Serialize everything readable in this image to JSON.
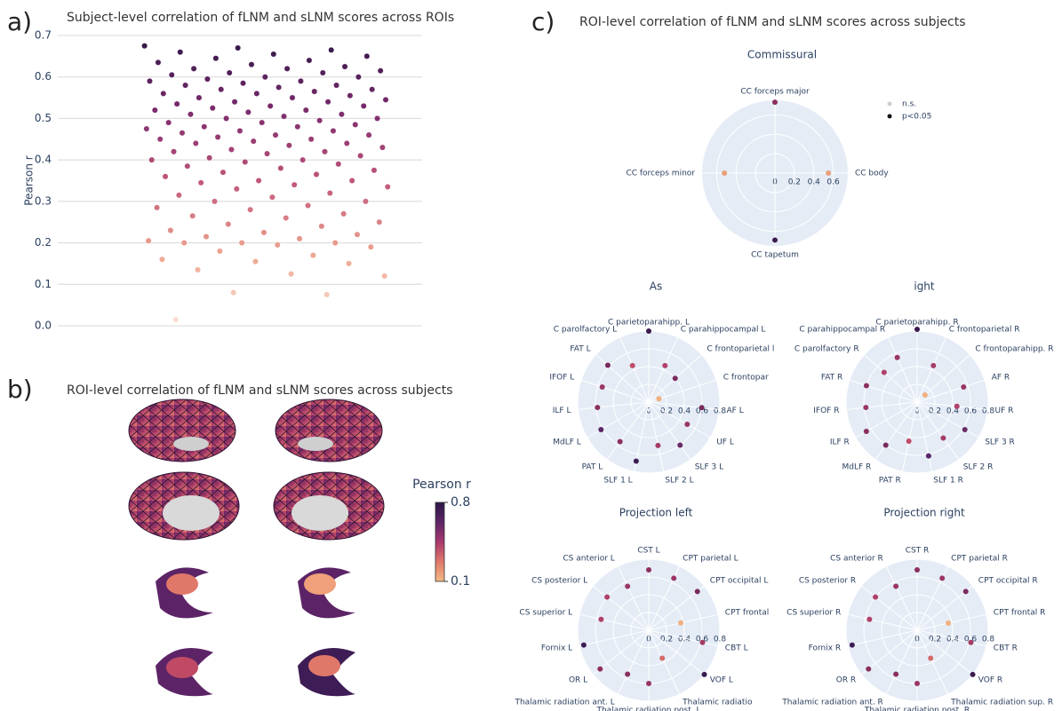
{
  "panels": [
    {
      "label": "a)"
    },
    {
      "label": "b)",
      "title": "ROI-level correlation of fLNM and sLNM scores across subjects"
    },
    {
      "label": "c)",
      "title": "ROI-level correlation of fLNM and sLNM scores across subjects"
    }
  ],
  "chart_data": [
    {
      "type": "strip",
      "title": "Subject-level correlation of fLNM and sLNM scores across ROIs",
      "y_label": "Pearson r",
      "ylim": [
        0,
        0.7
      ],
      "yticks": [
        {
          "value": 0,
          "label": "0.0"
        },
        0.1,
        0.2,
        0.3,
        0.4,
        0.5,
        0.6,
        0.7
      ],
      "grid": true,
      "colorscale": [
        "#fbe3d6",
        "#eea58f",
        "#c0567a",
        "#7a2a6c",
        "#2c1746"
      ],
      "values": [
        0.015,
        0.075,
        0.08,
        0.12,
        0.125,
        0.135,
        0.15,
        0.155,
        0.16,
        0.17,
        0.18,
        0.19,
        0.195,
        0.2,
        0.2,
        0.2,
        0.205,
        0.21,
        0.215,
        0.22,
        0.225,
        0.23,
        0.24,
        0.245,
        0.25,
        0.26,
        0.265,
        0.27,
        0.28,
        0.285,
        0.29,
        0.3,
        0.3,
        0.31,
        0.315,
        0.32,
        0.33,
        0.335,
        0.34,
        0.345,
        0.35,
        0.35,
        0.36,
        0.365,
        0.37,
        0.375,
        0.38,
        0.385,
        0.39,
        0.395,
        0.4,
        0.4,
        0.405,
        0.41,
        0.415,
        0.42,
        0.42,
        0.425,
        0.43,
        0.435,
        0.44,
        0.44,
        0.445,
        0.45,
        0.45,
        0.455,
        0.46,
        0.46,
        0.465,
        0.47,
        0.47,
        0.475,
        0.48,
        0.48,
        0.485,
        0.49,
        0.49,
        0.495,
        0.5,
        0.5,
        0.505,
        0.51,
        0.51,
        0.515,
        0.52,
        0.52,
        0.525,
        0.53,
        0.53,
        0.535,
        0.54,
        0.54,
        0.545,
        0.55,
        0.55,
        0.555,
        0.56,
        0.56,
        0.565,
        0.57,
        0.57,
        0.575,
        0.58,
        0.58,
        0.585,
        0.59,
        0.59,
        0.595,
        0.6,
        0.6,
        0.605,
        0.61,
        0.61,
        0.615,
        0.62,
        0.62,
        0.625,
        0.63,
        0.635,
        0.64,
        0.645,
        0.65,
        0.655,
        0.66,
        0.665,
        0.67,
        0.675
      ]
    },
    {
      "type": "colorbar",
      "label": "Pearson r",
      "lim": [
        0.1,
        0.8
      ],
      "ticks": [
        0.8,
        0.1
      ],
      "colors": [
        "#f3b984",
        "#e0786a",
        "#a8396f",
        "#5c2466",
        "#2c1746"
      ]
    },
    {
      "type": "polar",
      "title": "Commissural",
      "rlim": [
        0,
        0.75
      ],
      "rticks": [
        0,
        0.2,
        0.4,
        0.6
      ],
      "categories": [
        "CC forceps major",
        "CC body",
        "CC tapetum",
        "CC forceps minor"
      ],
      "values": [
        0.73,
        0.55,
        0.69,
        0.52
      ],
      "colors": [
        "#8b2f5e",
        "#e8a07a",
        "#3a1d4d",
        "#e8a07a"
      ],
      "legend": [
        {
          "name": "n.s.",
          "color": "#cfcfcf"
        },
        {
          "name": "p<0.05",
          "color": "#111111"
        }
      ]
    },
    {
      "type": "polar",
      "title": "As",
      "rlim": [
        0,
        0.8
      ],
      "rticks": [
        0,
        0.2,
        0.4,
        0.6,
        0.8
      ],
      "categories": [
        "C parietoparahipp. L",
        "C parahippocampal L",
        "C frontoparietal l",
        "C frontopar",
        "AF L",
        "UF L",
        "SLF 3 L",
        "SLF 2 L",
        "SLF 1 L",
        "PAT L",
        "MdLF L",
        "ILF L",
        "IFOF L",
        "FAT L",
        "C parolfactory L"
      ],
      "values": [
        0.8,
        0.45,
        0.4,
        0.12,
        0.6,
        0.5,
        0.6,
        0.5,
        0.68,
        0.55,
        0.62,
        0.58,
        0.55,
        0.62,
        0.45
      ],
      "colors": [
        "#3b1a50",
        "#b0406a",
        "#7a2a5e",
        "#f0b080",
        "#7a2a5e",
        "#9a3566",
        "#6b2b66",
        "#a33c64",
        "#3e1c55",
        "#8b2f5e",
        "#5a2466",
        "#8b2f5e",
        "#9a3566",
        "#7a2a5e",
        "#c04a66"
      ]
    },
    {
      "type": "polar",
      "title": "ight",
      "rlim": [
        0,
        0.8
      ],
      "rticks": [
        0,
        0.2,
        0.4,
        0.6,
        0.8
      ],
      "categories": [
        "C parietoparahipp. R",
        "C frontoparietal R",
        "C frontoparahipp. R",
        "AF R",
        "UF R",
        "SLF 3 R",
        "SLF 2 R",
        "SLF 1 R",
        "PAT R",
        "MdLF R",
        "ILF R",
        "IFOF R",
        "FAT R",
        "C parolfactory R",
        "C parahippocampal R"
      ],
      "values": [
        0.82,
        0.45,
        0.12,
        0.55,
        0.45,
        0.62,
        0.5,
        0.62,
        0.45,
        0.6,
        0.66,
        0.58,
        0.6,
        0.5,
        0.55
      ],
      "colors": [
        "#3b1a50",
        "#a33c64",
        "#f0b080",
        "#9a3566",
        "#b0406a",
        "#6b2b66",
        "#a33c64",
        "#5a2466",
        "#c04a66",
        "#7a2a5e",
        "#8b2f5e",
        "#9a3566",
        "#8b2f5e",
        "#b0406a",
        "#9a3566"
      ]
    },
    {
      "type": "polar",
      "title": "Projection left",
      "rlim": [
        0,
        0.8
      ],
      "rticks": [
        0,
        0.2,
        0.4,
        0.6,
        0.8
      ],
      "categories": [
        "CST L",
        "CPT parietal L",
        "CPT occipital L",
        "CPT frontal",
        "CBT L",
        "VOF L",
        "Thalamic radiatio",
        "Thalamic radiation post. L",
        "Thalamic radiation ant. L",
        "OR L",
        "Fornix L",
        "CS superior L",
        "CS posterior L",
        "CS anterior L"
      ],
      "values": [
        0.68,
        0.65,
        0.7,
        0.37,
        0.62,
        0.8,
        0.35,
        0.6,
        0.55,
        0.7,
        0.75,
        0.55,
        0.6,
        0.55
      ],
      "colors": [
        "#8b2f5e",
        "#9a3566",
        "#7a2a5e",
        "#f0b080",
        "#a33c64",
        "#3a1d4d",
        "#d66a6a",
        "#9a3566",
        "#8b2f5e",
        "#8b2f5e",
        "#3e1c55",
        "#b0406a",
        "#b0406a",
        "#9a3566"
      ]
    },
    {
      "type": "polar",
      "title": "Projection right",
      "rlim": [
        0,
        0.8
      ],
      "rticks": [
        0,
        0.2,
        0.4,
        0.6,
        0.8
      ],
      "categories": [
        "CST R",
        "CPT parietal R",
        "CPT occipital R",
        "CPT frontal R",
        "CBT R",
        "VOF R",
        "Thalamic radiation sup. R",
        "Thalamic radiation post. R",
        "Thalamic radiation ant. R",
        "OR R",
        "Fornix R",
        "CS superior R",
        "CS posterior R",
        "CS anterior R"
      ],
      "values": [
        0.68,
        0.65,
        0.7,
        0.36,
        0.62,
        0.8,
        0.35,
        0.6,
        0.55,
        0.7,
        0.75,
        0.55,
        0.6,
        0.55
      ],
      "colors": [
        "#8b2f5e",
        "#9a3566",
        "#7a2a5e",
        "#f0b080",
        "#a33c64",
        "#3a1d4d",
        "#d66a6a",
        "#9a3566",
        "#8b2f5e",
        "#8b2f5e",
        "#3e1c55",
        "#b0406a",
        "#b0406a",
        "#9a3566"
      ]
    }
  ]
}
